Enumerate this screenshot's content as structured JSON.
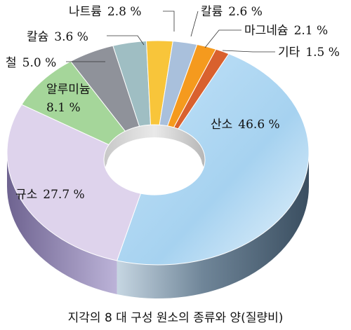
{
  "chart_data": {
    "type": "pie",
    "style": "3d-donut",
    "caption": "지각의 8 대 구성 원소의 종류와 양(질량비)",
    "unit": "%",
    "slices": [
      {
        "name": "산소",
        "value": 46.6,
        "label_name": "산소",
        "label_value": "46.6 %",
        "color": "#a9d3f1"
      },
      {
        "name": "규소",
        "value": 27.7,
        "label_name": "규소",
        "label_value": "27.7 %",
        "color": "#ded3ec"
      },
      {
        "name": "알루미늄",
        "value": 8.1,
        "label_name": "알루미늄",
        "label_value": "8.1 %",
        "color": "#a5d69a"
      },
      {
        "name": "철",
        "value": 5.0,
        "label_name": "철",
        "label_value": "5.0 %",
        "color": "#8f929a"
      },
      {
        "name": "칼슘",
        "value": 3.6,
        "label_name": "칼슘",
        "label_value": "3.6 %",
        "color": "#9fbec3"
      },
      {
        "name": "나트륨",
        "value": 2.8,
        "label_name": "나트륨",
        "label_value": "2.8 %",
        "color": "#f8c53a"
      },
      {
        "name": "칼륨",
        "value": 2.6,
        "label_name": "칼륨",
        "label_value": "2.6 %",
        "color": "#a9c0dc"
      },
      {
        "name": "마그네슘",
        "value": 2.1,
        "label_name": "마그네슘",
        "label_value": "2.1 %",
        "color": "#f59a1e"
      },
      {
        "name": "기타",
        "value": 1.5,
        "label_name": "기타",
        "label_value": "1.5 %",
        "color": "#d9612e"
      }
    ]
  }
}
